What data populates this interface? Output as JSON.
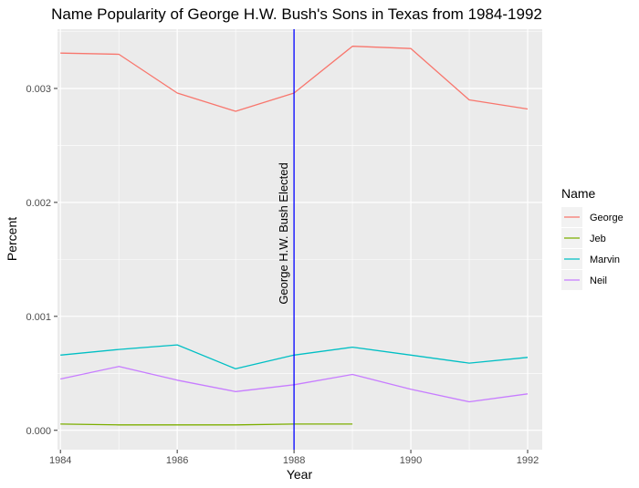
{
  "chart_data": {
    "type": "line",
    "title": "Name Popularity of George H.W. Bush's Sons in Texas from 1984-1992",
    "xlabel": "Year",
    "ylabel": "Percent",
    "xlim": [
      1983.95,
      1992.25
    ],
    "ylim": [
      -0.00017,
      0.00352
    ],
    "x_ticks": [
      1984,
      1986,
      1988,
      1990,
      1992
    ],
    "x_tick_labels": [
      "1984",
      "1986",
      "1988",
      "1990",
      "1992"
    ],
    "y_ticks": [
      0.0,
      0.001,
      0.002,
      0.003
    ],
    "y_tick_labels": [
      "0.000",
      "0.001",
      "0.002",
      "0.003"
    ],
    "grid": true,
    "legend": {
      "title": "Name",
      "placement": "right"
    },
    "annotation": {
      "x": 1988,
      "label": "George H.W. Bush Elected",
      "color": "#0000ff"
    },
    "series": [
      {
        "name": "George",
        "color": "#f8766d",
        "x": [
          1984,
          1985,
          1986,
          1987,
          1988,
          1989,
          1990,
          1991,
          1992
        ],
        "values": [
          0.00331,
          0.0033,
          0.00296,
          0.0028,
          0.00296,
          0.00337,
          0.00335,
          0.0029,
          0.00282
        ]
      },
      {
        "name": "Jeb",
        "color": "#7cae00",
        "x": [
          1984,
          1985,
          1986,
          1987,
          1988,
          1989
        ],
        "values": [
          5.5e-05,
          4.8e-05,
          4.8e-05,
          4.8e-05,
          5.5e-05,
          5.5e-05
        ]
      },
      {
        "name": "Marvin",
        "color": "#00bfc4",
        "x": [
          1984,
          1985,
          1986,
          1987,
          1988,
          1989,
          1990,
          1991,
          1992
        ],
        "values": [
          0.00066,
          0.00071,
          0.00075,
          0.00054,
          0.00066,
          0.00073,
          0.00066,
          0.00059,
          0.00064
        ]
      },
      {
        "name": "Neil",
        "color": "#c77cff",
        "x": [
          1984,
          1985,
          1986,
          1987,
          1988,
          1989,
          1990,
          1991,
          1992
        ],
        "values": [
          0.00045,
          0.00056,
          0.00044,
          0.00034,
          0.0004,
          0.00049,
          0.00036,
          0.00025,
          0.00032
        ]
      }
    ]
  }
}
